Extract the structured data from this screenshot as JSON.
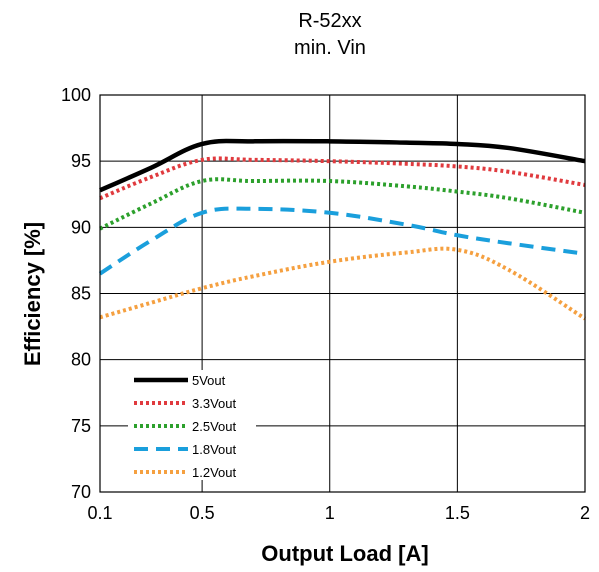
{
  "chart_data": {
    "type": "line",
    "title": "R-52xx",
    "subtitle": "min. Vin",
    "xlabel": "Output Load [A]",
    "ylabel": "Efficiency [%]",
    "xlim": [
      0.1,
      2
    ],
    "ylim": [
      70,
      100
    ],
    "x_ticks": [
      0.1,
      0.5,
      1,
      1.5,
      2
    ],
    "x_tick_labels": [
      "0.1",
      "0.5",
      "1",
      "1.5",
      "2"
    ],
    "y_ticks": [
      70,
      75,
      80,
      85,
      90,
      95,
      100
    ],
    "y_tick_labels": [
      "70",
      "75",
      "80",
      "85",
      "90",
      "95",
      "100"
    ],
    "grid_x": [
      0.5,
      1,
      1.5
    ],
    "grid_y": [
      75,
      80,
      85,
      90,
      95
    ],
    "legend_position": "bottom-left",
    "series": [
      {
        "name": "5Vout",
        "color": "#000000",
        "style": "solid",
        "points": [
          [
            0.1,
            92.8
          ],
          [
            0.3,
            94.5
          ],
          [
            0.5,
            96.3
          ],
          [
            0.7,
            96.5
          ],
          [
            1.0,
            96.5
          ],
          [
            1.3,
            96.4
          ],
          [
            1.5,
            96.3
          ],
          [
            1.7,
            96.0
          ],
          [
            2.0,
            95.0
          ]
        ]
      },
      {
        "name": "3.3Vout",
        "color": "#e03a3e",
        "style": "dotted",
        "points": [
          [
            0.1,
            92.2
          ],
          [
            0.3,
            93.8
          ],
          [
            0.5,
            95.1
          ],
          [
            0.7,
            95.1
          ],
          [
            1.0,
            95.0
          ],
          [
            1.3,
            94.8
          ],
          [
            1.5,
            94.6
          ],
          [
            1.7,
            94.2
          ],
          [
            2.0,
            93.2
          ]
        ]
      },
      {
        "name": "2.5Vout",
        "color": "#2ca02c",
        "style": "dotted",
        "points": [
          [
            0.1,
            89.9
          ],
          [
            0.3,
            91.8
          ],
          [
            0.5,
            93.5
          ],
          [
            0.7,
            93.5
          ],
          [
            1.0,
            93.5
          ],
          [
            1.3,
            93.1
          ],
          [
            1.5,
            92.7
          ],
          [
            1.7,
            92.2
          ],
          [
            2.0,
            91.1
          ]
        ]
      },
      {
        "name": "1.8Vout",
        "color": "#1a9fdc",
        "style": "dashed",
        "points": [
          [
            0.1,
            86.5
          ],
          [
            0.3,
            89.0
          ],
          [
            0.5,
            91.1
          ],
          [
            0.7,
            91.4
          ],
          [
            1.0,
            91.1
          ],
          [
            1.3,
            90.2
          ],
          [
            1.5,
            89.4
          ],
          [
            1.7,
            88.8
          ],
          [
            2.0,
            88.0
          ]
        ]
      },
      {
        "name": "1.2Vout",
        "color": "#f5a040",
        "style": "dotted",
        "points": [
          [
            0.1,
            83.2
          ],
          [
            0.3,
            84.3
          ],
          [
            0.5,
            85.4
          ],
          [
            0.7,
            86.3
          ],
          [
            1.0,
            87.4
          ],
          [
            1.3,
            88.1
          ],
          [
            1.5,
            88.3
          ],
          [
            1.7,
            86.8
          ],
          [
            2.0,
            83.1
          ]
        ]
      }
    ]
  }
}
